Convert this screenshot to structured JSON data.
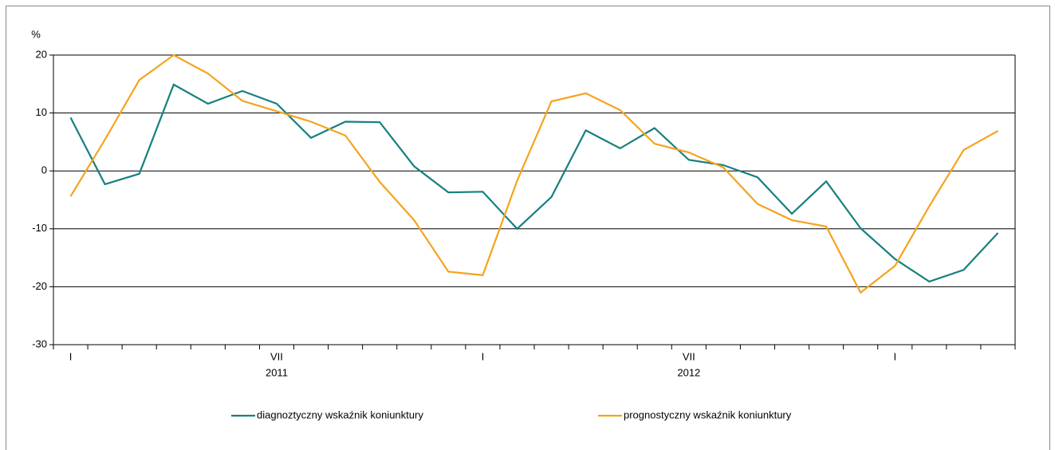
{
  "chart_data": {
    "type": "line",
    "y_label": "%",
    "categories": [
      "I",
      null,
      null,
      null,
      null,
      null,
      "VII",
      null,
      null,
      null,
      null,
      null,
      "I",
      null,
      null,
      null,
      null,
      null,
      "VII",
      null,
      null,
      null,
      null,
      null,
      "I",
      null,
      null,
      null
    ],
    "year_labels": [
      "2011",
      "2012"
    ],
    "series": [
      {
        "name": "diagnoztyczny wskaźnik koniunktury",
        "color": "#17807e",
        "values": [
          9.2,
          -2.3,
          -0.5,
          14.9,
          11.6,
          13.8,
          11.6,
          5.7,
          8.5,
          8.4,
          0.8,
          -3.7,
          -3.6,
          -10.0,
          -4.5,
          7.0,
          3.9,
          7.4,
          1.9,
          1.0,
          -1.1,
          -7.4,
          -1.8,
          -9.9,
          -15.2,
          -19.1,
          -17.1,
          -10.7
        ]
      },
      {
        "name": "prognostyczny wskaźnik koniunktury",
        "color": "#f5a31c",
        "values": [
          -4.4,
          5.4,
          15.7,
          20,
          16.8,
          12.1,
          10.3,
          8.5,
          6.1,
          -1.9,
          -8.5,
          -17.4,
          -18.0,
          -1.7,
          12.0,
          13.4,
          10.5,
          4.7,
          3.2,
          0.6,
          -5.7,
          -8.5,
          -9.6,
          -21.0,
          -16.4,
          -6.1,
          3.6,
          6.9
        ]
      }
    ],
    "ylim": [
      -30,
      20
    ],
    "yticks": [
      -30,
      -20,
      -10,
      0,
      10,
      20
    ],
    "grid": true
  }
}
